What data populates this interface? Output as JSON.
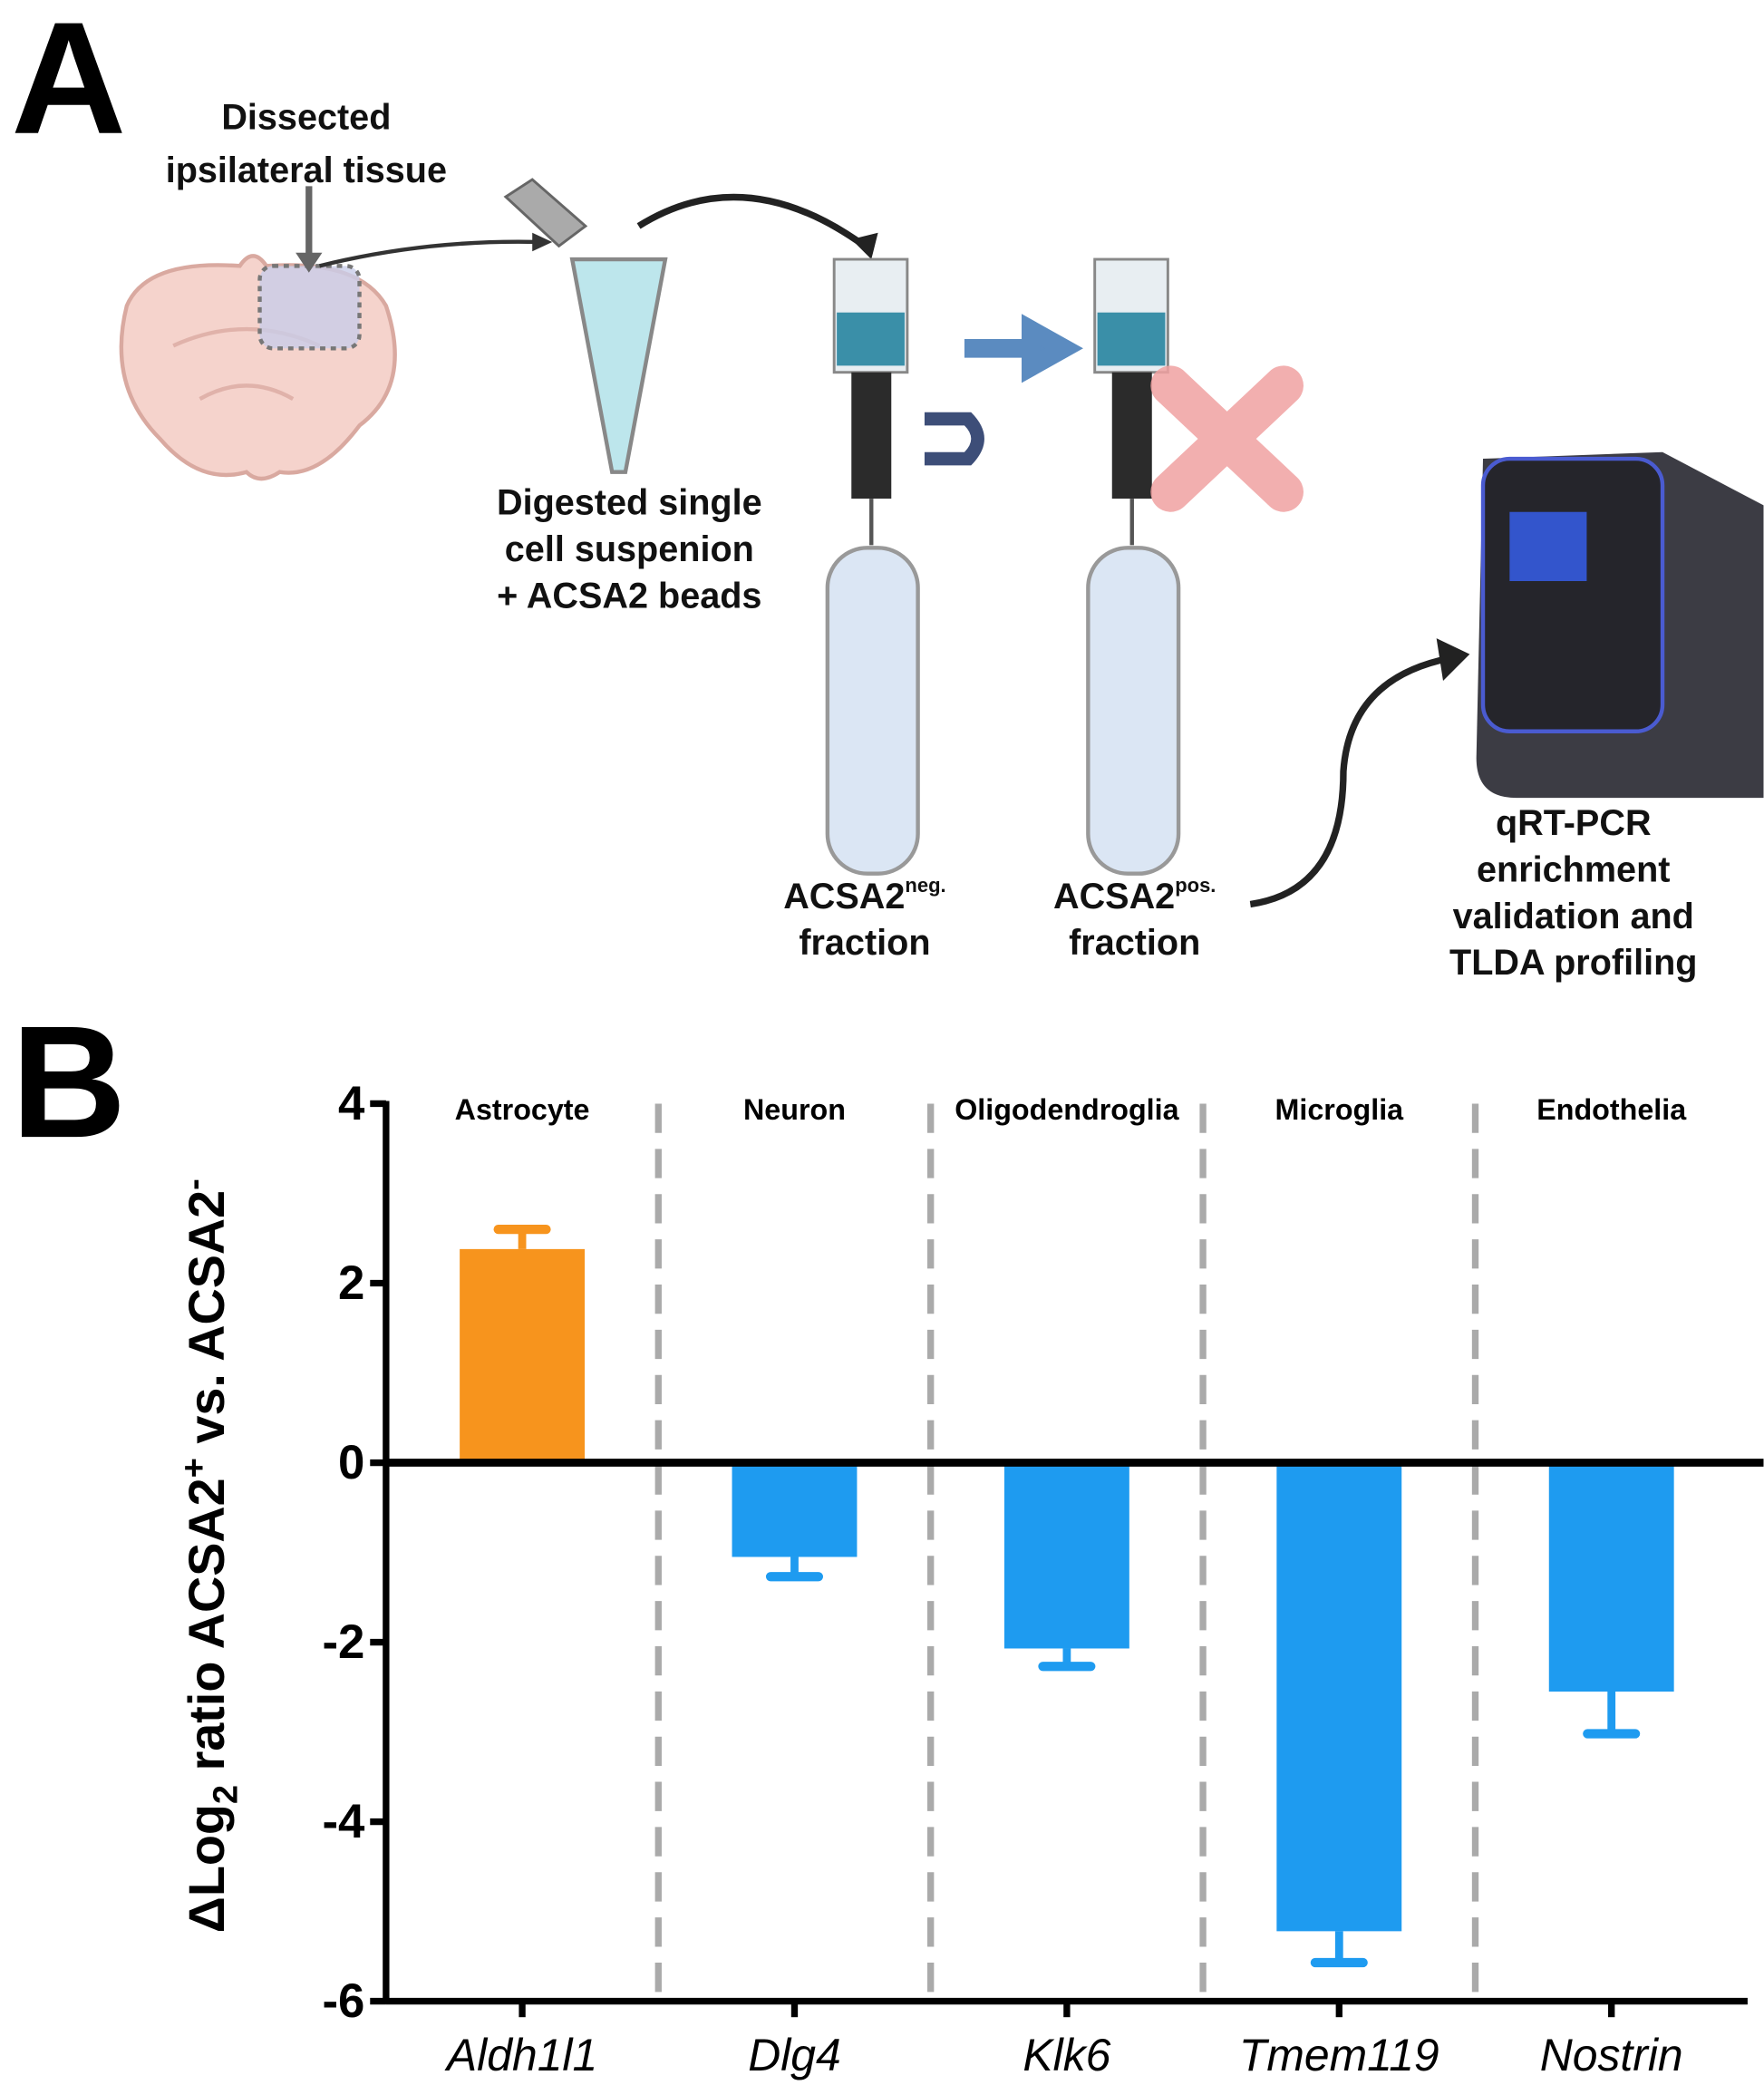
{
  "panel_a": {
    "letter": "A",
    "tissue_label": [
      "Dissected",
      "ipsilateral tissue"
    ],
    "suspension_label": [
      "Digested single",
      "cell suspenion",
      "+ ACSA2 beads"
    ],
    "neg_fraction": {
      "main": "ACSA2",
      "sup": "neg.",
      "line2": "fraction"
    },
    "pos_fraction": {
      "main": "ACSA2",
      "sup": "pos.",
      "line2": "fraction"
    },
    "machine_label": [
      "qRT-PCR",
      "enrichment",
      "validation and",
      "TLDA profiling"
    ]
  },
  "panel_b_letter": "B",
  "chart_data": {
    "type": "bar",
    "y_label": [
      "ΔLog",
      "2",
      " ratio ACSA2",
      "+",
      " vs. ACSA2",
      "-"
    ],
    "groups": [
      "Astrocyte",
      "Neuron",
      "Oligodendroglia",
      "Microglia",
      "Endothelia"
    ],
    "categories": [
      "Aldh1l1",
      "Dlg4",
      "Klk6",
      "Tmem119",
      "Nostrin"
    ],
    "values": [
      2.38,
      -1.05,
      -2.07,
      -5.22,
      -2.55
    ],
    "errors": [
      0.22,
      0.22,
      0.2,
      0.35,
      0.47
    ],
    "colors": [
      "#f7941d",
      "#1e9bf0",
      "#1e9bf0",
      "#1e9bf0",
      "#1e9bf0"
    ],
    "ylim": [
      -6,
      4
    ],
    "yticks": [
      -6,
      -4,
      -2,
      0,
      2,
      4
    ]
  }
}
